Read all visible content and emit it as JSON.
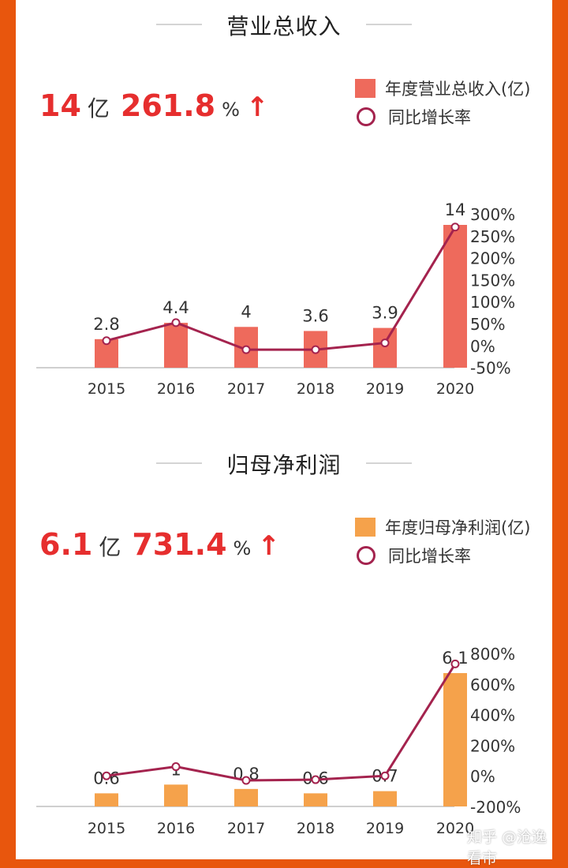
{
  "watermark": "知乎 @沧逸看市",
  "sections": [
    {
      "title": "营业总收入",
      "kpi": {
        "value": "14",
        "unit": "亿",
        "growth": "261.8",
        "growth_unit": "%",
        "arrow": "↑"
      },
      "legend": {
        "bar": "年度营业总收入(亿)",
        "line": "同比增长率"
      }
    },
    {
      "title": "归母净利润",
      "kpi": {
        "value": "6.1",
        "unit": "亿",
        "growth": "731.4",
        "growth_unit": "%",
        "arrow": "↑"
      },
      "legend": {
        "bar": "年度归母净利润(亿)",
        "line": "同比增长率"
      }
    }
  ],
  "chart_data": [
    {
      "type": "bar",
      "categories": [
        "2015",
        "2016",
        "2017",
        "2018",
        "2019",
        "2020"
      ],
      "series": [
        {
          "name": "年度营业总收入(亿)",
          "type": "bar",
          "values": [
            2.8,
            4.4,
            4,
            3.6,
            3.9,
            14
          ],
          "labels": [
            "2.8",
            "4.4",
            "4",
            "3.6",
            "3.9",
            "14"
          ],
          "color": "#ee6a5c"
        },
        {
          "name": "同比增长率",
          "type": "line",
          "axis": "right",
          "values": [
            10,
            50,
            -10,
            -10,
            5,
            262
          ],
          "color": "#a4234e"
        }
      ],
      "y2_ticks": [
        "300%",
        "250%",
        "200%",
        "150%",
        "100%",
        "50%",
        "0%",
        "-50%"
      ],
      "y2lim": [
        -50,
        300
      ],
      "ylim": [
        0,
        14
      ]
    },
    {
      "type": "bar",
      "categories": [
        "2015",
        "2016",
        "2017",
        "2018",
        "2019",
        "2020"
      ],
      "series": [
        {
          "name": "年度归母净利润(亿)",
          "type": "bar",
          "values": [
            0.6,
            1,
            0.8,
            0.6,
            0.7,
            6.1
          ],
          "labels": [
            "0.6",
            "1",
            "0.8",
            "0.6",
            "0.7",
            "6.1"
          ],
          "color": "#f5a24b"
        },
        {
          "name": "同比增长率",
          "type": "line",
          "axis": "right",
          "values": [
            0,
            60,
            -30,
            -25,
            0,
            731
          ],
          "color": "#a4234e"
        }
      ],
      "y2_ticks": [
        "800%",
        "600%",
        "400%",
        "200%",
        "0%",
        "-200%"
      ],
      "y2lim": [
        -200,
        800
      ],
      "ylim": [
        0,
        6.1
      ]
    }
  ]
}
